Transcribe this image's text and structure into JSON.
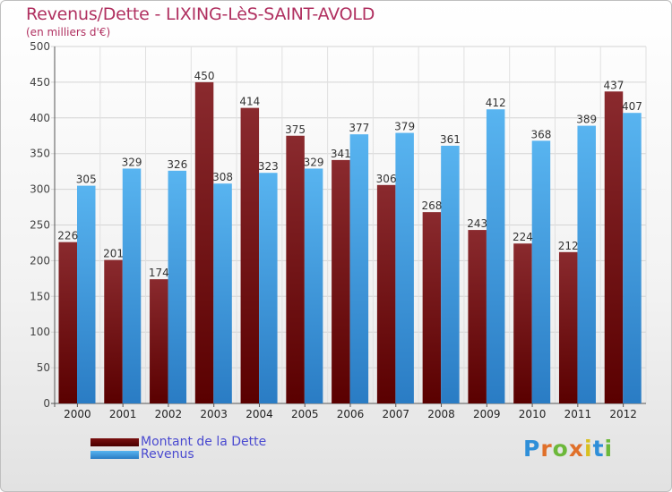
{
  "chart_data": {
    "type": "bar",
    "title": "Revenus/Dette - LIXING-LèS-SAINT-AVOLD",
    "subtitle": "(en milliers d'€)",
    "categories": [
      "2000",
      "2001",
      "2002",
      "2003",
      "2004",
      "2005",
      "2006",
      "2007",
      "2008",
      "2009",
      "2010",
      "2011",
      "2012"
    ],
    "series": [
      {
        "name": "Montant de la Dette",
        "color": "#7a1a1a",
        "values": [
          226,
          201,
          174,
          450,
          414,
          375,
          341,
          306,
          268,
          243,
          224,
          212,
          437
        ]
      },
      {
        "name": "Revenus",
        "color": "#3a9ee0",
        "values": [
          305,
          329,
          326,
          308,
          323,
          329,
          377,
          379,
          361,
          412,
          368,
          389,
          407
        ]
      }
    ],
    "ylim": [
      0,
      500
    ],
    "yticks": [
      0,
      50,
      100,
      150,
      200,
      250,
      300,
      350,
      400,
      450,
      500
    ],
    "grid": true,
    "legend_position": "bottom-left"
  },
  "logo": {
    "letters": [
      "P",
      "r",
      "o",
      "x",
      "i",
      "t",
      "i"
    ],
    "colors": [
      "#2f8fd8",
      "#e0702a",
      "#6cb83a",
      "#e0702a",
      "#d8c020",
      "#2f8fd8",
      "#6cb83a"
    ]
  }
}
